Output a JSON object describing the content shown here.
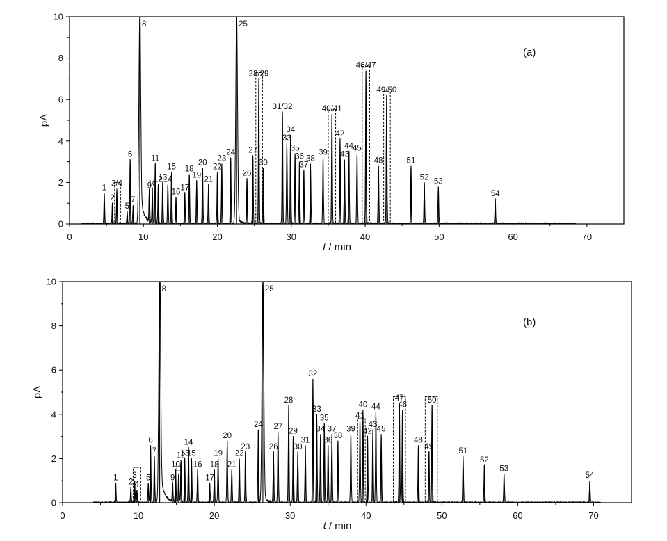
{
  "chart_data": [
    {
      "type": "line",
      "panel_label": "(a)",
      "xlabel_italic": "t",
      "xlabel_rest": " / min",
      "ylabel": "pA",
      "xlim": [
        0,
        75
      ],
      "ylim": [
        0,
        10
      ],
      "xticks": [
        0,
        10,
        20,
        30,
        40,
        50,
        60,
        70
      ],
      "yticks": [
        0,
        2,
        4,
        6,
        8,
        10
      ],
      "x_end": 68.5,
      "peaks": [
        {
          "label": "1",
          "t": 4.7,
          "h": 1.5
        },
        {
          "label": "2",
          "t": 5.8,
          "h": 1.0
        },
        {
          "label": "3/4",
          "t": 6.4,
          "h": 1.7
        },
        {
          "label": "5",
          "t": 7.8,
          "h": 0.6
        },
        {
          "label": "6",
          "t": 8.2,
          "h": 3.1
        },
        {
          "label": "7",
          "t": 8.6,
          "h": 0.9
        },
        {
          "label": "8",
          "t": 9.5,
          "h": 10
        },
        {
          "label": "9",
          "t": 10.8,
          "h": 1.6
        },
        {
          "label": "10",
          "t": 11.2,
          "h": 1.7
        },
        {
          "label": "11",
          "t": 11.6,
          "h": 2.9
        },
        {
          "label": "12",
          "t": 12.0,
          "h": 1.9
        },
        {
          "label": "13",
          "t": 12.6,
          "h": 2.0
        },
        {
          "label": "14",
          "t": 13.3,
          "h": 1.9
        },
        {
          "label": "15",
          "t": 13.8,
          "h": 2.5
        },
        {
          "label": "16",
          "t": 14.4,
          "h": 1.3
        },
        {
          "label": "17",
          "t": 15.6,
          "h": 1.5
        },
        {
          "label": "18",
          "t": 16.2,
          "h": 2.4
        },
        {
          "label": "19",
          "t": 17.2,
          "h": 2.1
        },
        {
          "label": "20",
          "t": 18.0,
          "h": 2.7
        },
        {
          "label": "21",
          "t": 18.8,
          "h": 1.9
        },
        {
          "label": "22",
          "t": 20.0,
          "h": 2.5
        },
        {
          "label": "23",
          "t": 20.6,
          "h": 2.9
        },
        {
          "label": "24",
          "t": 21.8,
          "h": 3.2
        },
        {
          "label": "25",
          "t": 22.6,
          "h": 10
        },
        {
          "label": "26",
          "t": 24.0,
          "h": 2.2
        },
        {
          "label": "27",
          "t": 24.8,
          "h": 3.3
        },
        {
          "label": "28/29",
          "t": 25.6,
          "h": 7.0
        },
        {
          "label": "30",
          "t": 26.2,
          "h": 2.7
        },
        {
          "label": "31/32",
          "t": 28.8,
          "h": 5.4
        },
        {
          "label": "33",
          "t": 29.4,
          "h": 3.9
        },
        {
          "label": "34",
          "t": 29.9,
          "h": 4.3
        },
        {
          "label": "35",
          "t": 30.5,
          "h": 3.4
        },
        {
          "label": "36",
          "t": 31.1,
          "h": 3.0
        },
        {
          "label": "37",
          "t": 31.7,
          "h": 2.6
        },
        {
          "label": "38",
          "t": 32.6,
          "h": 2.9
        },
        {
          "label": "39",
          "t": 34.3,
          "h": 3.2
        },
        {
          "label": "40/41",
          "t": 35.5,
          "h": 5.3
        },
        {
          "label": "42",
          "t": 36.6,
          "h": 4.1
        },
        {
          "label": "43",
          "t": 37.2,
          "h": 3.1
        },
        {
          "label": "44",
          "t": 37.8,
          "h": 3.5
        },
        {
          "label": "45",
          "t": 38.9,
          "h": 3.4
        },
        {
          "label": "46/47",
          "t": 40.1,
          "h": 7.4
        },
        {
          "label": "48",
          "t": 41.8,
          "h": 2.8
        },
        {
          "label": "49/50",
          "t": 42.9,
          "h": 6.2
        },
        {
          "label": "51",
          "t": 46.2,
          "h": 2.8
        },
        {
          "label": "52",
          "t": 48.0,
          "h": 2.0
        },
        {
          "label": "53",
          "t": 49.9,
          "h": 1.8
        },
        {
          "label": "54",
          "t": 57.6,
          "h": 1.2
        }
      ],
      "boxes": [
        {
          "t0": 6.1,
          "t1": 6.9,
          "top": 2.0
        },
        {
          "t0": 25.2,
          "t1": 26.1,
          "top": 7.3
        },
        {
          "t0": 35.0,
          "t1": 36.0,
          "top": 5.5
        },
        {
          "t0": 39.6,
          "t1": 40.6,
          "top": 7.6
        },
        {
          "t0": 42.5,
          "t1": 43.4,
          "top": 6.4
        }
      ]
    },
    {
      "type": "line",
      "panel_label": "(b)",
      "xlabel_italic": "t",
      "xlabel_rest": " / min",
      "ylabel": "pA",
      "xlim": [
        0,
        75
      ],
      "ylim": [
        0,
        10
      ],
      "xticks": [
        0,
        10,
        20,
        30,
        40,
        50,
        60,
        70
      ],
      "yticks": [
        0,
        2,
        4,
        6,
        8,
        10
      ],
      "x_end": 71,
      "peaks": [
        {
          "label": "1",
          "t": 7.0,
          "h": 0.9
        },
        {
          "label": "2",
          "t": 9.0,
          "h": 0.7
        },
        {
          "label": "3",
          "t": 9.5,
          "h": 1.0
        },
        {
          "label": "4",
          "t": 9.8,
          "h": 0.6
        },
        {
          "label": "5",
          "t": 11.3,
          "h": 0.9
        },
        {
          "label": "6",
          "t": 11.6,
          "h": 2.6
        },
        {
          "label": "7",
          "t": 12.1,
          "h": 2.1
        },
        {
          "label": "8",
          "t": 12.8,
          "h": 10
        },
        {
          "label": "9",
          "t": 14.5,
          "h": 0.9
        },
        {
          "label": "10",
          "t": 14.9,
          "h": 1.5
        },
        {
          "label": "11",
          "t": 15.3,
          "h": 1.3
        },
        {
          "label": "12",
          "t": 15.6,
          "h": 1.9
        },
        {
          "label": "13",
          "t": 16.1,
          "h": 2.0
        },
        {
          "label": "14",
          "t": 16.6,
          "h": 2.5
        },
        {
          "label": "15",
          "t": 17.0,
          "h": 2.0
        },
        {
          "label": "16",
          "t": 17.8,
          "h": 1.5
        },
        {
          "label": "17",
          "t": 19.4,
          "h": 0.9
        },
        {
          "label": "18",
          "t": 20.0,
          "h": 1.5
        },
        {
          "label": "19",
          "t": 20.5,
          "h": 2.0
        },
        {
          "label": "20",
          "t": 21.7,
          "h": 2.8
        },
        {
          "label": "21",
          "t": 22.3,
          "h": 1.5
        },
        {
          "label": "22",
          "t": 23.3,
          "h": 2.0
        },
        {
          "label": "23",
          "t": 24.1,
          "h": 2.3
        },
        {
          "label": "24",
          "t": 25.8,
          "h": 3.3
        },
        {
          "label": "25",
          "t": 26.4,
          "h": 10
        },
        {
          "label": "26",
          "t": 27.8,
          "h": 2.3
        },
        {
          "label": "27",
          "t": 28.4,
          "h": 3.2
        },
        {
          "label": "28",
          "t": 29.8,
          "h": 4.4
        },
        {
          "label": "29",
          "t": 30.4,
          "h": 3.0
        },
        {
          "label": "30",
          "t": 31.0,
          "h": 2.3
        },
        {
          "label": "31",
          "t": 32.0,
          "h": 2.6
        },
        {
          "label": "32",
          "t": 33.0,
          "h": 5.6
        },
        {
          "label": "33",
          "t": 33.5,
          "h": 4.0
        },
        {
          "label": "34",
          "t": 34.0,
          "h": 3.1
        },
        {
          "label": "35",
          "t": 34.5,
          "h": 3.6
        },
        {
          "label": "36",
          "t": 35.0,
          "h": 2.6
        },
        {
          "label": "37",
          "t": 35.5,
          "h": 3.1
        },
        {
          "label": "38",
          "t": 36.3,
          "h": 2.8
        },
        {
          "label": "39",
          "t": 38.0,
          "h": 3.1
        },
        {
          "label": "40",
          "t": 39.6,
          "h": 4.2
        },
        {
          "label": "41",
          "t": 39.2,
          "h": 3.7
        },
        {
          "label": "42",
          "t": 40.2,
          "h": 3.0
        },
        {
          "label": "43",
          "t": 40.9,
          "h": 3.3
        },
        {
          "label": "44",
          "t": 41.3,
          "h": 4.1
        },
        {
          "label": "45",
          "t": 42.0,
          "h": 3.1
        },
        {
          "label": "46",
          "t": 44.8,
          "h": 4.2
        },
        {
          "label": "47",
          "t": 44.4,
          "h": 4.5
        },
        {
          "label": "48",
          "t": 46.9,
          "h": 2.6
        },
        {
          "label": "49",
          "t": 48.3,
          "h": 2.3
        },
        {
          "label": "50",
          "t": 48.7,
          "h": 4.4
        },
        {
          "label": "51",
          "t": 52.8,
          "h": 2.1
        },
        {
          "label": "52",
          "t": 55.6,
          "h": 1.7
        },
        {
          "label": "53",
          "t": 58.2,
          "h": 1.3
        },
        {
          "label": "54",
          "t": 69.5,
          "h": 1.0
        }
      ],
      "boxes": [
        {
          "t0": 9.3,
          "t1": 10.3,
          "top": 1.6
        },
        {
          "t0": 38.9,
          "t1": 39.9,
          "top": 3.8
        },
        {
          "t0": 43.6,
          "t1": 45.2,
          "top": 4.8
        },
        {
          "t0": 47.8,
          "t1": 49.4,
          "top": 4.8
        }
      ]
    }
  ]
}
